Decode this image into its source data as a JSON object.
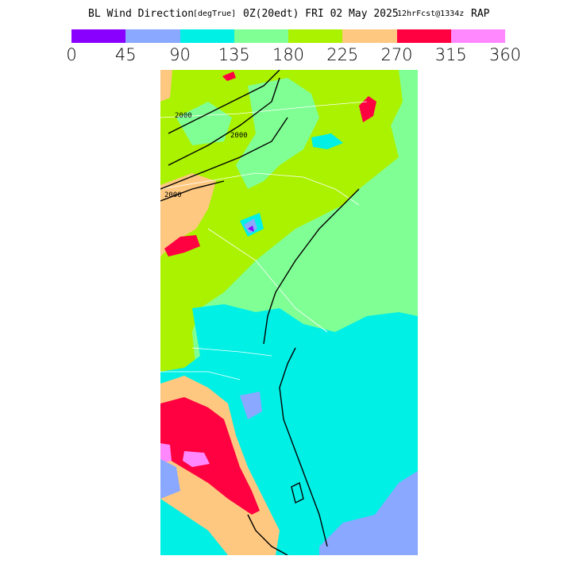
{
  "header": {
    "title": "BL Wind Direction",
    "units": "[degTrue]",
    "valid": "0Z(20edt) FRI 02 May 2025",
    "forecast": "12hrFcst@1334z",
    "model": "RAP"
  },
  "colorbar": {
    "ticks": [
      "0",
      "45",
      "90",
      "135",
      "180",
      "225",
      "270",
      "315",
      "360"
    ],
    "colors": [
      "#8a00ff",
      "#8aa8ff",
      "#00f0e6",
      "#80ff94",
      "#aaf200",
      "#ffc880",
      "#ff0040",
      "#ff88ff"
    ]
  },
  "map": {
    "contour_labels": [
      "2000",
      "2000",
      "2000"
    ]
  }
}
